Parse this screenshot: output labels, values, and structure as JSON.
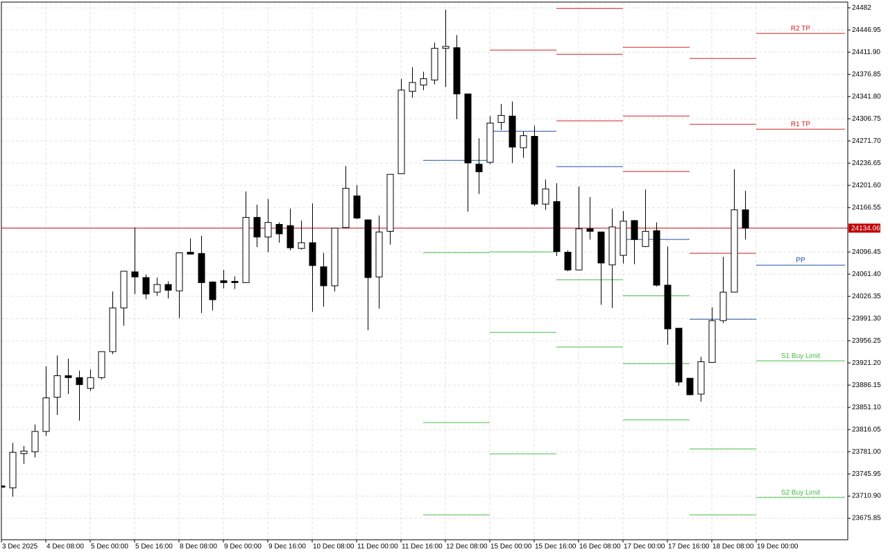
{
  "chart_data": {
    "type": "candlestick",
    "categories": [
      "3 Dec 2025",
      null,
      null,
      null,
      "4 Dec 08:00",
      null,
      null,
      null,
      "5 Dec 00:00",
      null,
      null,
      null,
      "5 Dec 16:00",
      null,
      null,
      null,
      "8 Dec 08:00",
      null,
      null,
      null,
      "9 Dec 00:00",
      null,
      null,
      null,
      "9 Dec 16:00",
      null,
      null,
      null,
      "10 Dec 08:00",
      null,
      null,
      null,
      "11 Dec 00:00",
      null,
      null,
      null,
      "11 Dec 16:00",
      null,
      null,
      null,
      "12 Dec 08:00",
      null,
      null,
      null,
      "15 Dec 00:00",
      null,
      null,
      null,
      "15 Dec 16:00",
      null,
      null,
      null,
      "16 Dec 08:00",
      null,
      null,
      null,
      "17 Dec 00:00",
      null,
      null,
      null,
      "17 Dec 16:00",
      null,
      null,
      null,
      "18 Dec 08:00",
      null,
      null,
      null,
      "19 Dec 00:00",
      null,
      null,
      null,
      null,
      null,
      null,
      null
    ],
    "open": [
      23727,
      23724,
      23778,
      23781,
      23813,
      23867,
      23901,
      23898,
      23881,
      23898,
      23939,
      24008,
      24065,
      24056,
      24033,
      24045,
      24035,
      24096,
      24094,
      24049,
      24051,
      24050,
      24048,
      24151,
      24120,
      24140,
      24138,
      24102,
      24111,
      24073,
      24043,
      24135,
      24185,
      24147,
      24057,
      24129,
      24220,
      24350,
      24360,
      24368,
      24418,
      24419,
      24346,
      24235,
      24238,
      24301,
      24311,
      24261,
      24279,
      24172,
      24176,
      24096,
      24068,
      24133,
      24128,
      24076,
      24091,
      24146,
      24105,
      24130,
      24044,
      23976,
      23897,
      23872,
      23922,
      23988,
      24033,
      24163,
      null,
      null,
      null,
      null,
      null,
      null,
      null,
      null
    ],
    "high": [
      23728,
      23795,
      23790,
      23824,
      23916,
      23933,
      23928,
      23909,
      23911,
      23939,
      24034,
      24066,
      24135,
      24061,
      24056,
      24050,
      24095,
      24118,
      24122,
      24050,
      24068,
      24058,
      24192,
      24171,
      24180,
      24143,
      24165,
      24146,
      24173,
      24095,
      24134,
      24232,
      24202,
      24148,
      24154,
      24219,
      24370,
      24388,
      24381,
      24427,
      24479,
      24439,
      24346,
      24276,
      24311,
      24330,
      24334,
      24287,
      24296,
      24211,
      24205,
      24099,
      24200,
      24183,
      24128,
      24165,
      24161,
      24147,
      24195,
      24143,
      24105,
      23976,
      23897,
      23931,
      24009,
      24089,
      24227,
      24193,
      null,
      null,
      null,
      null,
      null,
      null,
      null,
      null
    ],
    "low": [
      23724,
      23710,
      23762,
      23772,
      23806,
      23839,
      23872,
      23830,
      23877,
      23895,
      23935,
      23980,
      24030,
      24022,
      24027,
      24023,
      23992,
      24093,
      24000,
      24004,
      24039,
      24038,
      24048,
      24104,
      24096,
      24111,
      24099,
      24100,
      24002,
      24010,
      24034,
      24135,
      24148,
      23973,
      24007,
      24108,
      24220,
      24340,
      24352,
      24361,
      24357,
      24306,
      24160,
      24188,
      24235,
      24289,
      24237,
      24245,
      24169,
      24163,
      24090,
      24066,
      24068,
      24116,
      24013,
      24008,
      24078,
      24077,
      24104,
      24042,
      23950,
      23885,
      23870,
      23860,
      23922,
      23984,
      24033,
      24116,
      null,
      null,
      null,
      null,
      null,
      null,
      null,
      null
    ],
    "close": [
      23725,
      23780,
      23782,
      23813,
      23866,
      23901,
      23898,
      23887,
      23898,
      23939,
      24008,
      24066,
      24057,
      24030,
      24045,
      24036,
      24095,
      24093,
      24048,
      24021,
      24048,
      24048,
      24151,
      24120,
      24143,
      24125,
      24103,
      24111,
      24075,
      24043,
      24134,
      24197,
      24150,
      24056,
      24128,
      24219,
      24352,
      24364,
      24370,
      24418,
      24421,
      24346,
      24237,
      24223,
      24300,
      24312,
      24262,
      24280,
      24172,
      24196,
      24097,
      24068,
      24133,
      24129,
      24079,
      24136,
      24145,
      24116,
      24129,
      24044,
      23975,
      23891,
      23871,
      23923,
      23988,
      24033,
      24163,
      24134,
      null,
      null,
      null,
      null,
      null,
      null,
      null,
      null
    ],
    "up_color": "#ffffff",
    "down_color": "#000000",
    "levels": [
      {
        "name": "R2 TP",
        "color": "#d02020",
        "values": [
          null,
          null,
          null,
          null,
          null,
          null,
          null,
          null,
          null,
          null,
          null,
          null,
          null,
          null,
          null,
          null,
          null,
          null,
          null,
          null,
          null,
          null,
          null,
          null,
          null,
          null,
          null,
          null,
          null,
          null,
          null,
          null,
          null,
          null,
          null,
          null,
          null,
          null,
          null,
          null,
          null,
          null,
          null,
          null,
          24415.2,
          24415.2,
          24415.2,
          24415.2,
          24415.2,
          24415.2,
          24480.9,
          24480.9,
          24480.9,
          24480.9,
          24480.9,
          24480.9,
          24419.6,
          24419.6,
          24419.6,
          24419.6,
          24419.6,
          24419.6,
          24402,
          24402,
          24402,
          24402,
          24402,
          24402,
          24441.5,
          24441.5,
          24441.5,
          24441.5,
          24441.5,
          24441.5,
          24441.5,
          24441.5
        ]
      },
      {
        "name": "R1 TP",
        "color": "#d02020",
        "values": [
          null,
          null,
          null,
          null,
          null,
          null,
          null,
          null,
          null,
          null,
          null,
          null,
          null,
          null,
          null,
          null,
          null,
          null,
          null,
          null,
          null,
          null,
          null,
          null,
          null,
          null,
          null,
          null,
          null,
          null,
          null,
          null,
          null,
          null,
          null,
          null,
          null,
          null,
          null,
          null,
          null,
          null,
          null,
          null,
          null,
          null,
          null,
          null,
          null,
          null,
          24408.6,
          24408.6,
          24408.6,
          24408.6,
          24408.6,
          24408.6,
          24311.1,
          24311.1,
          24311.1,
          24311.1,
          24311.1,
          24311.1,
          24298,
          24298,
          24298,
          24298,
          24298,
          24298,
          24290.3,
          24290.3,
          24290.3,
          24290.3,
          24290.3,
          24290.3,
          24290.3,
          24290.3
        ]
      },
      {
        "color": "#d02020",
        "values": [
          null,
          null,
          null,
          null,
          null,
          null,
          null,
          null,
          null,
          null,
          null,
          null,
          null,
          null,
          null,
          null,
          null,
          null,
          null,
          null,
          null,
          null,
          null,
          null,
          null,
          null,
          null,
          null,
          null,
          null,
          null,
          null,
          null,
          null,
          null,
          null,
          null,
          null,
          null,
          null,
          null,
          null,
          null,
          null,
          null,
          null,
          null,
          null,
          null,
          null,
          24303.5,
          24303.5,
          24303.5,
          24303.5,
          24303.5,
          24303.5,
          24223.5,
          24223.5,
          24223.5,
          24223.5,
          24223.5,
          24223.5,
          24094.3,
          24094.3,
          24094.3,
          24094.3,
          24094.3,
          24094.3,
          null,
          null,
          null,
          null,
          null,
          null,
          null,
          null
        ]
      },
      {
        "name": "PP",
        "color": "#1f4fa3",
        "values": [
          null,
          null,
          null,
          null,
          null,
          null,
          null,
          null,
          null,
          null,
          null,
          null,
          null,
          null,
          null,
          null,
          null,
          null,
          null,
          null,
          null,
          null,
          null,
          null,
          null,
          null,
          null,
          null,
          null,
          null,
          null,
          null,
          null,
          null,
          null,
          null,
          null,
          null,
          24241,
          24241,
          24241,
          24241,
          24241,
          24241,
          24287,
          24287,
          24287,
          24287,
          24287,
          24287,
          24231.2,
          24231.2,
          24231.2,
          24231.2,
          24231.2,
          24231.2,
          24116.2,
          24116.2,
          24116.2,
          24116.2,
          24116.2,
          24116.2,
          23990.2,
          23990.2,
          23990.2,
          23990.2,
          23990.2,
          23990.2,
          24075.6,
          24075.6,
          24075.6,
          24075.6,
          24075.6,
          24075.6,
          24075.6,
          24075.6
        ]
      },
      {
        "name": "S1 Buy Limit",
        "color": "#44bb44",
        "values": [
          null,
          null,
          null,
          null,
          null,
          null,
          null,
          null,
          null,
          null,
          null,
          null,
          null,
          null,
          null,
          null,
          null,
          null,
          null,
          null,
          null,
          null,
          null,
          null,
          null,
          null,
          null,
          null,
          null,
          null,
          null,
          null,
          null,
          null,
          null,
          null,
          null,
          null,
          24095.4,
          24095.4,
          24095.4,
          24095.4,
          24095.4,
          24095.4,
          24096.5,
          24096.5,
          24096.5,
          24096.5,
          24096.5,
          24096.5,
          24052.6,
          24052.6,
          24052.6,
          24052.6,
          24052.6,
          24052.6,
          24027.5,
          24027.5,
          24027.5,
          24027.5,
          24027.5,
          24027.5,
          23785.4,
          23785.4,
          23785.4,
          23785.4,
          23785.4,
          23785.4,
          23924.5,
          23924.5,
          23924.5,
          23924.5,
          23924.5,
          23924.5,
          23924.5,
          23924.5
        ]
      },
      {
        "name": "S2 Buy Limit",
        "color": "#44bb44",
        "values": [
          null,
          null,
          null,
          null,
          null,
          null,
          null,
          null,
          null,
          null,
          null,
          null,
          null,
          null,
          null,
          null,
          null,
          null,
          null,
          null,
          null,
          null,
          null,
          null,
          null,
          null,
          null,
          null,
          null,
          null,
          null,
          null,
          null,
          null,
          null,
          null,
          null,
          null,
          23827,
          23827,
          23827,
          23827,
          23827,
          23827,
          23969.4,
          23969.4,
          23969.4,
          23969.4,
          23969.4,
          23969.4,
          23946.4,
          23946.4,
          23946.4,
          23946.4,
          23946.4,
          23946.4,
          23920.1,
          23920.1,
          23920.1,
          23920.1,
          23920.1,
          23920.1,
          23681.3,
          23681.3,
          23681.3,
          23681.3,
          23681.3,
          23681.3,
          23708.7,
          23708.7,
          23708.7,
          23708.7,
          23708.7,
          23708.7,
          23708.7,
          23708.7
        ]
      },
      {
        "color": "#44bb44",
        "values": [
          null,
          null,
          null,
          null,
          null,
          null,
          null,
          null,
          null,
          null,
          null,
          null,
          null,
          null,
          null,
          null,
          null,
          null,
          null,
          null,
          null,
          null,
          null,
          null,
          null,
          null,
          null,
          null,
          null,
          null,
          null,
          null,
          null,
          null,
          null,
          null,
          null,
          null,
          23681.3,
          23681.3,
          23681.3,
          23681.3,
          23681.3,
          23681.3,
          23777.7,
          23777.7,
          23777.7,
          23777.7,
          23777.7,
          23777.7,
          null,
          null,
          null,
          null,
          null,
          null,
          23831.4,
          23831.4,
          23831.4,
          23831.4,
          23831.4,
          23831.4,
          null,
          null,
          null,
          null,
          null,
          null,
          null,
          null,
          null,
          null,
          null,
          null,
          null,
          null
        ]
      }
    ],
    "current_price": 24134.06,
    "current_price_color": "#c00000",
    "ylim": [
      23642,
      24491
    ],
    "yticks": [
      24482,
      24446.95,
      {
        "value": 24411.9,
        "label": "24411.90"
      },
      24376.85,
      {
        "value": 24341.8,
        "label": "24341.80"
      },
      24306.75,
      {
        "value": 24271.7,
        "label": "24271.70"
      },
      24236.65,
      {
        "value": 24201.6,
        "label": "24201.60"
      },
      24166.55,
      24096.45,
      {
        "value": 24061.4,
        "label": "24061.40"
      },
      24026.35,
      {
        "value": 23991.3,
        "label": "23991.30"
      },
      23956.25,
      {
        "value": 23921.2,
        "label": "23921.20"
      },
      23886.15,
      {
        "value": 23851.1,
        "label": "23851.10"
      },
      23816.05,
      {
        "value": 23781,
        "label": "23781.00"
      },
      23745.95,
      {
        "value": 23710.9,
        "label": "23710.90"
      },
      23675.85
    ],
    "grid": true
  }
}
